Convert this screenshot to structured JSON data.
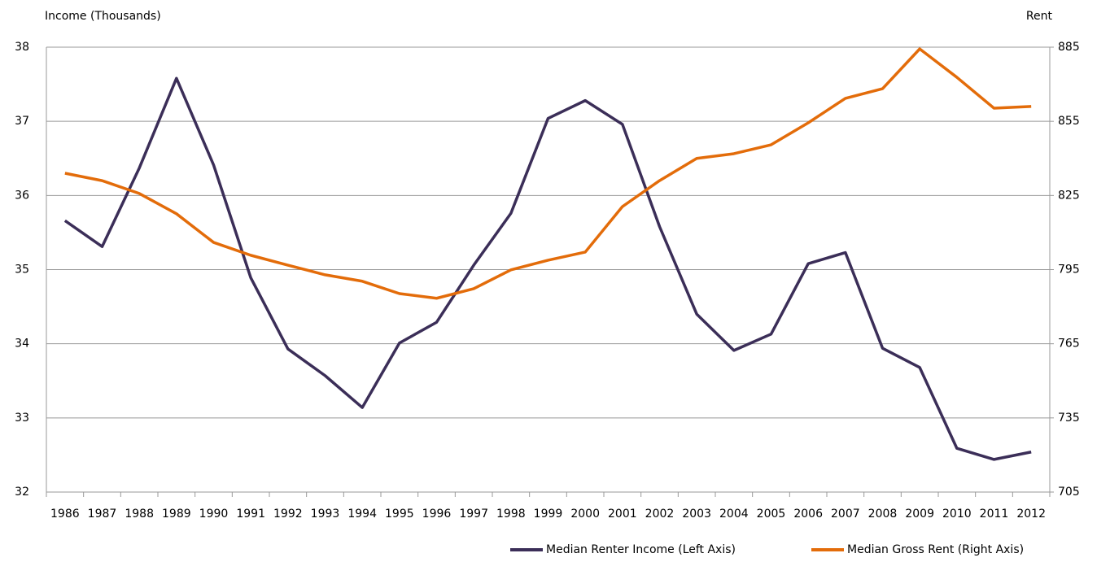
{
  "chart_data": {
    "type": "line",
    "y_label": "Income (Thousands)",
    "y2_label": "Rent",
    "categories": [
      "1986",
      "1987",
      "1988",
      "1989",
      "1990",
      "1991",
      "1992",
      "1993",
      "1994",
      "1995",
      "1996",
      "1997",
      "1998",
      "1999",
      "2000",
      "2001",
      "2002",
      "2003",
      "2004",
      "2005",
      "2006",
      "2007",
      "2008",
      "2009",
      "2010",
      "2011",
      "2012"
    ],
    "series": [
      {
        "name": "Median Renter Income (Left Axis)",
        "color": "#3b2e58",
        "axis": "y",
        "values": [
          35.66,
          35.31,
          36.37,
          37.58,
          36.41,
          34.89,
          33.93,
          33.57,
          33.14,
          34.01,
          34.29,
          35.06,
          35.76,
          37.04,
          37.28,
          36.96,
          35.58,
          34.4,
          33.91,
          34.13,
          35.08,
          35.23,
          33.94,
          33.68,
          32.59,
          32.44,
          32.54
        ]
      },
      {
        "name": "Median Gross Rent (Right Axis)",
        "color": "#e36c0a",
        "axis": "y2",
        "values": [
          834,
          831,
          825.8,
          817.6,
          806,
          800.8,
          796.8,
          792.9,
          790.3,
          785.3,
          783.4,
          787.3,
          794.9,
          798.8,
          802.1,
          820.5,
          831,
          840,
          841.9,
          845.5,
          854.4,
          864.3,
          868.2,
          884.3,
          872.8,
          860.3,
          861
        ]
      }
    ],
    "ylim": [
      32,
      38
    ],
    "yticks": [
      32,
      33,
      34,
      35,
      36,
      37,
      38
    ],
    "y2lim": [
      705,
      885
    ],
    "y2ticks": [
      705,
      735,
      765,
      795,
      825,
      855,
      885
    ],
    "grid": true,
    "legend": "bottom-right"
  }
}
